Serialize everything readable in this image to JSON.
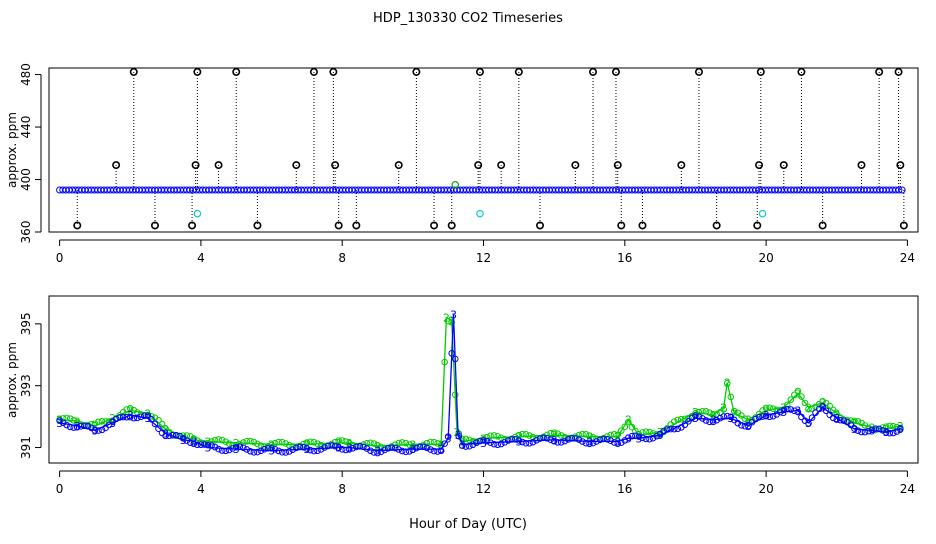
{
  "chart_data": [
    {
      "type": "scatter",
      "title": "HDP_130330  CO2 Timeseries",
      "ylabel": "approx. ppm",
      "xlim": [
        -0.3,
        24.3
      ],
      "ylim": [
        360,
        485
      ],
      "xticks": [
        "0",
        "4",
        "8",
        "12",
        "16",
        "20",
        "24"
      ],
      "yticks": [
        "360",
        "400",
        "440",
        "480"
      ],
      "baseline": {
        "x_range": [
          0,
          23.9
        ],
        "y": 392,
        "color": "#0000ff",
        "marker": "o"
      },
      "outliers": {
        "marker": "o",
        "color": "#000000",
        "points": [
          [
            0.5,
            365
          ],
          [
            1.6,
            411
          ],
          [
            2.1,
            482
          ],
          [
            2.7,
            365
          ],
          [
            3.75,
            365
          ],
          [
            3.85,
            411
          ],
          [
            3.9,
            482
          ],
          [
            4.5,
            411
          ],
          [
            5.0,
            482
          ],
          [
            5.6,
            365
          ],
          [
            6.7,
            411
          ],
          [
            7.2,
            482
          ],
          [
            7.75,
            482
          ],
          [
            7.8,
            411
          ],
          [
            7.9,
            365
          ],
          [
            8.4,
            365
          ],
          [
            9.6,
            411
          ],
          [
            10.1,
            482
          ],
          [
            10.6,
            365
          ],
          [
            11.1,
            365
          ],
          [
            11.85,
            411
          ],
          [
            11.9,
            482
          ],
          [
            12.5,
            411
          ],
          [
            13.0,
            482
          ],
          [
            13.6,
            365
          ],
          [
            14.6,
            411
          ],
          [
            15.1,
            482
          ],
          [
            15.75,
            482
          ],
          [
            15.8,
            411
          ],
          [
            15.9,
            365
          ],
          [
            16.5,
            365
          ],
          [
            17.6,
            411
          ],
          [
            18.1,
            482
          ],
          [
            18.6,
            365
          ],
          [
            19.75,
            365
          ],
          [
            19.8,
            411
          ],
          [
            19.85,
            482
          ],
          [
            20.5,
            411
          ],
          [
            21.0,
            482
          ],
          [
            21.6,
            365
          ],
          [
            22.7,
            411
          ],
          [
            23.2,
            482
          ],
          [
            23.75,
            482
          ],
          [
            23.8,
            411
          ],
          [
            23.9,
            365
          ]
        ]
      },
      "extra_points": [
        {
          "x": 3.9,
          "y": 374,
          "color": "#00cccc"
        },
        {
          "x": 11.9,
          "y": 374,
          "color": "#00cccc"
        },
        {
          "x": 19.9,
          "y": 374,
          "color": "#00cccc"
        },
        {
          "x": 11.2,
          "y": 396,
          "color": "#00aa00"
        }
      ]
    },
    {
      "type": "line",
      "ylabel": "approx. ppm",
      "xlabel": "Hour of Day (UTC)",
      "xlim": [
        -0.3,
        24.3
      ],
      "ylim": [
        390.5,
        395.9
      ],
      "xticks": [
        "0",
        "4",
        "8",
        "12",
        "16",
        "20",
        "24"
      ],
      "yticks": [
        "391",
        "393",
        "395"
      ],
      "series": [
        {
          "name": "2",
          "color": "#00cc00",
          "marker_label": "2",
          "points": [
            [
              0,
              391.9
            ],
            [
              0.5,
              391.85
            ],
            [
              1,
              391.7
            ],
            [
              1.5,
              391.95
            ],
            [
              2,
              392.2
            ],
            [
              2.5,
              392.1
            ],
            [
              3,
              391.6
            ],
            [
              3.5,
              391.35
            ],
            [
              3.8,
              391.25
            ],
            [
              4.2,
              391.2
            ],
            [
              5,
              391.15
            ],
            [
              6,
              391.1
            ],
            [
              7,
              391.1
            ],
            [
              7.9,
              391.15
            ],
            [
              8.2,
              391.15
            ],
            [
              9,
              391.05
            ],
            [
              10,
              391.1
            ],
            [
              10.8,
              391.1
            ],
            [
              10.95,
              395.2
            ],
            [
              11.1,
              395.1
            ],
            [
              11.25,
              391.5
            ],
            [
              11.4,
              391.2
            ],
            [
              12.0,
              391.3
            ],
            [
              13,
              391.35
            ],
            [
              14,
              391.4
            ],
            [
              15,
              391.35
            ],
            [
              15.8,
              391.35
            ],
            [
              16.1,
              391.9
            ],
            [
              16.4,
              391.4
            ],
            [
              17,
              391.5
            ],
            [
              18,
              392.15
            ],
            [
              18.5,
              392.05
            ],
            [
              18.8,
              392.3
            ],
            [
              18.9,
              393.1
            ],
            [
              19.1,
              392.1
            ],
            [
              19.5,
              391.9
            ],
            [
              20,
              392.2
            ],
            [
              20.5,
              392.3
            ],
            [
              20.9,
              392.75
            ],
            [
              21.2,
              392.3
            ],
            [
              21.6,
              392.45
            ],
            [
              22,
              392.1
            ],
            [
              22.5,
              391.8
            ],
            [
              23,
              391.65
            ],
            [
              23.4,
              391.6
            ],
            [
              23.8,
              391.7
            ]
          ]
        },
        {
          "name": "3",
          "color": "#0000ff",
          "marker_label": "3",
          "points": [
            [
              0,
              391.8
            ],
            [
              0.5,
              391.7
            ],
            [
              1,
              391.55
            ],
            [
              1.5,
              391.8
            ],
            [
              2,
              392.05
            ],
            [
              2.5,
              391.95
            ],
            [
              3,
              391.45
            ],
            [
              3.5,
              391.25
            ],
            [
              3.8,
              391.2
            ],
            [
              4.2,
              391.0
            ],
            [
              5,
              390.95
            ],
            [
              6,
              390.9
            ],
            [
              7,
              390.95
            ],
            [
              7.9,
              391.0
            ],
            [
              8.2,
              391.0
            ],
            [
              9,
              390.9
            ],
            [
              10,
              390.95
            ],
            [
              10.8,
              390.95
            ],
            [
              11.0,
              391.3
            ],
            [
              11.15,
              395.3
            ],
            [
              11.28,
              391.4
            ],
            [
              11.4,
              391.1
            ],
            [
              12.0,
              391.15
            ],
            [
              13,
              391.2
            ],
            [
              14,
              391.25
            ],
            [
              15,
              391.2
            ],
            [
              15.8,
              391.2
            ],
            [
              16.1,
              391.3
            ],
            [
              16.4,
              391.3
            ],
            [
              17,
              391.4
            ],
            [
              18,
              391.95
            ],
            [
              18.5,
              391.9
            ],
            [
              19,
              391.95
            ],
            [
              19.5,
              391.7
            ],
            [
              20,
              392.05
            ],
            [
              20.5,
              392.15
            ],
            [
              20.9,
              392.2
            ],
            [
              21.2,
              391.8
            ],
            [
              21.6,
              392.3
            ],
            [
              22,
              391.95
            ],
            [
              22.5,
              391.6
            ],
            [
              23,
              391.55
            ],
            [
              23.4,
              391.5
            ],
            [
              23.8,
              391.6
            ]
          ]
        }
      ]
    }
  ]
}
